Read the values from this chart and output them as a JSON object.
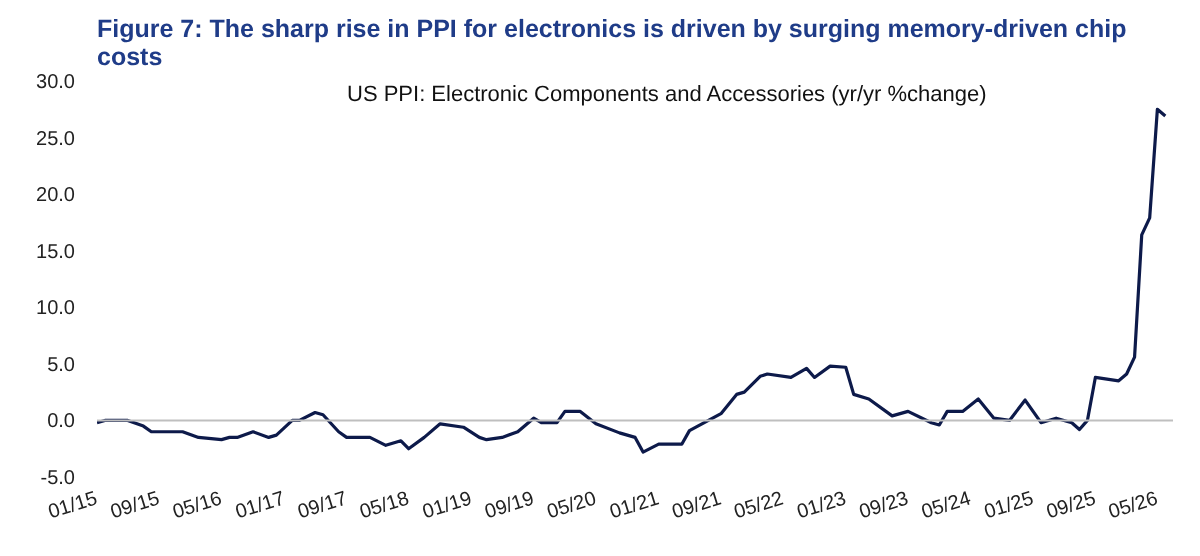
{
  "chart_data": {
    "type": "line",
    "title": "Figure 7: The sharp rise in PPI for electronics is driven by surging memory-driven chip costs",
    "annotations": [
      "US PPI: Electronic Components and Accessories (yr/yr %change)"
    ],
    "x": [
      "2015-01",
      "2015-02",
      "2015-05",
      "2015-07",
      "2015-08",
      "2015-12",
      "2016-02",
      "2016-05",
      "2016-06",
      "2016-07",
      "2016-09",
      "2016-11",
      "2016-12",
      "2017-02",
      "2017-03",
      "2017-05",
      "2017-06",
      "2017-08",
      "2017-09",
      "2017-12",
      "2018-02",
      "2018-04",
      "2018-05",
      "2018-07",
      "2018-09",
      "2018-12",
      "2019-02",
      "2019-03",
      "2019-05",
      "2019-07",
      "2019-09",
      "2019-10",
      "2019-12",
      "2020-01",
      "2020-03",
      "2020-05",
      "2020-08",
      "2020-10",
      "2020-11",
      "2021-01",
      "2021-04",
      "2021-05",
      "2021-09",
      "2021-11",
      "2021-12",
      "2022-02",
      "2022-03",
      "2022-06",
      "2022-08",
      "2022-09",
      "2022-11",
      "2023-01",
      "2023-02",
      "2023-04",
      "2023-07",
      "2023-09",
      "2023-12",
      "2024-01",
      "2024-02",
      "2024-04",
      "2024-06",
      "2024-08",
      "2024-10",
      "2024-12",
      "2025-02",
      "2025-04",
      "2025-06",
      "2025-07",
      "2025-08",
      "2025-09",
      "2025-12",
      "2026-01",
      "2026-02",
      "2026-03",
      "2026-04",
      "2026-05",
      "2026-06"
    ],
    "series": [
      {
        "color": "#0d1a4a",
        "values": [
          -0.2,
          0,
          0,
          -0.5,
          -1.0,
          -1.0,
          -1.5,
          -1.7,
          -1.5,
          -1.5,
          -1.0,
          -1.5,
          -1.3,
          0,
          0,
          0.7,
          0.5,
          -1.0,
          -1.5,
          -1.5,
          -2.2,
          -1.8,
          -2.5,
          -1.5,
          -0.3,
          -0.6,
          -1.5,
          -1.7,
          -1.5,
          -1.0,
          0.2,
          -0.2,
          -0.2,
          0.8,
          0.8,
          -0.3,
          -1.1,
          -1.5,
          -2.8,
          -2.1,
          -2.1,
          -0.9,
          0.6,
          2.3,
          2.5,
          3.9,
          4.1,
          3.8,
          4.6,
          3.8,
          4.8,
          4.7,
          2.3,
          1.9,
          0.4,
          0.8,
          -0.2,
          -0.4,
          0.8,
          0.8,
          1.9,
          0.2,
          0,
          1.8,
          -0.2,
          0.2,
          -0.2,
          -0.8,
          0,
          3.8,
          3.5,
          4.1,
          5.6,
          16.4,
          17.9,
          27.5,
          26.9
        ]
      }
    ],
    "xlim": [
      "2015-01",
      "2026-07"
    ],
    "xticks": [
      {
        "value": "2015-01",
        "label": "01/15"
      },
      {
        "value": "2015-09",
        "label": "09/15"
      },
      {
        "value": "2016-05",
        "label": "05/16"
      },
      {
        "value": "2017-01",
        "label": "01/17"
      },
      {
        "value": "2017-09",
        "label": "09/17"
      },
      {
        "value": "2018-05",
        "label": "05/18"
      },
      {
        "value": "2019-01",
        "label": "01/19"
      },
      {
        "value": "2019-09",
        "label": "09/19"
      },
      {
        "value": "2020-05",
        "label": "05/20"
      },
      {
        "value": "2021-01",
        "label": "01/21"
      },
      {
        "value": "2021-09",
        "label": "09/21"
      },
      {
        "value": "2022-05",
        "label": "05/22"
      },
      {
        "value": "2023-01",
        "label": "01/23"
      },
      {
        "value": "2023-09",
        "label": "09/23"
      },
      {
        "value": "2024-05",
        "label": "05/24"
      },
      {
        "value": "2025-01",
        "label": "01/25"
      },
      {
        "value": "2025-09",
        "label": "09/25"
      },
      {
        "value": "2026-05",
        "label": "05/26"
      }
    ],
    "ylim": [
      -5,
      30
    ],
    "yticks": [
      {
        "value": -5,
        "label": "-5.0"
      },
      {
        "value": 0,
        "label": "0.0"
      },
      {
        "value": 5,
        "label": "5.0"
      },
      {
        "value": 10,
        "label": "10.0"
      },
      {
        "value": 15,
        "label": "15.0"
      },
      {
        "value": 20,
        "label": "20.0"
      },
      {
        "value": 25,
        "label": "25.0"
      },
      {
        "value": 30,
        "label": "30.0"
      }
    ],
    "ref_lines": [
      {
        "axis": "y",
        "value": 0,
        "color": "#bfbfbf"
      }
    ],
    "grid": false,
    "marker": "none",
    "line_style": "solid"
  }
}
